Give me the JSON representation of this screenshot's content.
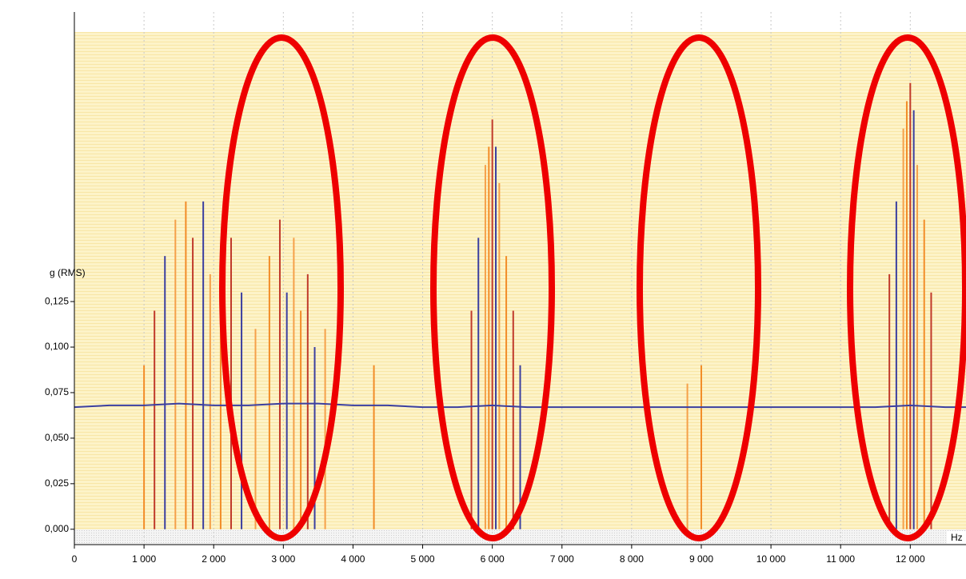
{
  "chart_data": {
    "type": "line",
    "y_label": "g (RMS)",
    "x_unit": "Hz",
    "xlim": [
      0,
      12800
    ],
    "ylim": [
      -0.008,
      0.273
    ],
    "grid": true,
    "xticks": [
      0,
      {
        "value": 1000,
        "label": "1 000"
      },
      {
        "value": 2000,
        "label": "2 000"
      },
      {
        "value": 3000,
        "label": "3 000"
      },
      {
        "value": 4000,
        "label": "4 000"
      },
      {
        "value": 5000,
        "label": "5 000"
      },
      {
        "value": 6000,
        "label": "6 000"
      },
      {
        "value": 7000,
        "label": "7 000"
      },
      {
        "value": 8000,
        "label": "8 000"
      },
      {
        "value": 9000,
        "label": "9 000"
      },
      {
        "value": 10000,
        "label": "10 000"
      },
      {
        "value": 11000,
        "label": "11 000"
      },
      {
        "value": 12000,
        "label": "12 000"
      }
    ],
    "yticks": [
      {
        "value": 0,
        "label": "0,000"
      },
      {
        "value": 0.025,
        "label": "0,025"
      },
      {
        "value": 0.05,
        "label": "0,050"
      },
      {
        "value": 0.075,
        "label": "0,075"
      },
      {
        "value": 0.1,
        "label": "0,100"
      },
      {
        "value": 0.125,
        "label": "0,125"
      }
    ],
    "color": "#3b3fa0",
    "x": [
      0,
      500,
      1000,
      1500,
      2000,
      2500,
      3000,
      3500,
      4000,
      4500,
      5000,
      5500,
      6000,
      6500,
      7000,
      7500,
      8000,
      8500,
      9000,
      9500,
      10000,
      10500,
      11000,
      11500,
      12000,
      12500,
      12800
    ],
    "values": [
      0.067,
      0.068,
      0.068,
      0.069,
      0.068,
      0.068,
      0.069,
      0.069,
      0.068,
      0.068,
      0.067,
      0.067,
      0.068,
      0.067,
      0.067,
      0.067,
      0.067,
      0.067,
      0.067,
      0.067,
      0.067,
      0.067,
      0.067,
      0.067,
      0.068,
      0.067,
      0.067
    ],
    "spike_colors": [
      "#f28c28",
      "#c0392b",
      "#3b3fa0",
      "#f5a04a"
    ],
    "spikes_x": [
      1000,
      1150,
      1300,
      1450,
      1600,
      1700,
      1850,
      1950,
      2100,
      2250,
      2400,
      2600,
      2800,
      2950,
      3050,
      3150,
      3250,
      3350,
      3450,
      3600,
      4300,
      5700,
      5800,
      5900,
      5950,
      6000,
      6050,
      6100,
      6200,
      6300,
      6400,
      8800,
      9000,
      11700,
      11800,
      11900,
      11950,
      12000,
      12050,
      12100,
      12200,
      12300
    ],
    "spikes": [
      0.09,
      0.12,
      0.15,
      0.17,
      0.18,
      0.16,
      0.18,
      0.14,
      0.12,
      0.16,
      0.13,
      0.11,
      0.15,
      0.17,
      0.13,
      0.16,
      0.12,
      0.14,
      0.1,
      0.11,
      0.09,
      0.12,
      0.16,
      0.2,
      0.21,
      0.225,
      0.21,
      0.19,
      0.15,
      0.12,
      0.09,
      0.08,
      0.09,
      0.14,
      0.18,
      0.22,
      0.235,
      0.245,
      0.23,
      0.2,
      0.17,
      0.13
    ]
  }
}
